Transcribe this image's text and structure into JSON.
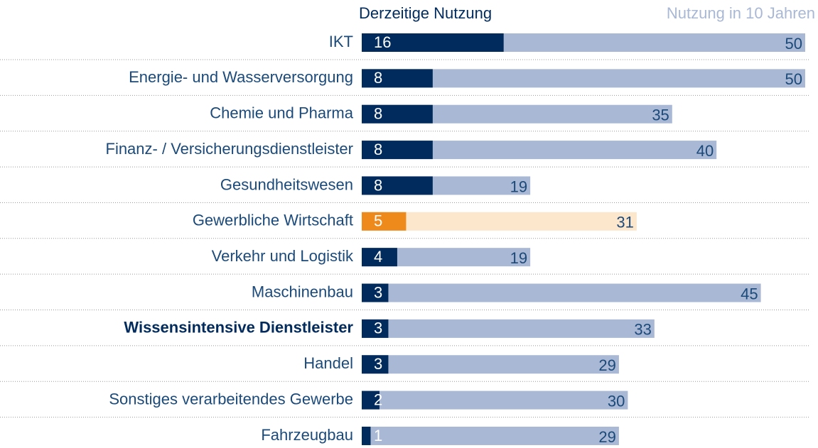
{
  "chart_data": {
    "type": "overlap-bar",
    "categories": [
      "IKT",
      "Energie- und Wasserversorgung",
      "Chemie und Pharma",
      "Finanz- / Versicherungsdienstleister",
      "Gesundheitswesen",
      "Gewerbliche Wirtschaft",
      "Verkehr und Logistik",
      "Maschinenbau",
      "Wissensintensive Dienstleister",
      "Handel",
      "Sonstiges verarbeitendes Gewerbe",
      "Fahrzeugbau"
    ],
    "series": [
      {
        "name": "Nutzung in 10 Jahren",
        "color": "#a9b8d4",
        "values": [
          50,
          50,
          35,
          40,
          19,
          31,
          19,
          45,
          33,
          29,
          30,
          29
        ],
        "colors": [
          "#a9b8d4",
          "#a9b8d4",
          "#a9b8d4",
          "#a9b8d4",
          "#a9b8d4",
          "#fce6cc",
          "#a9b8d4",
          "#a9b8d4",
          "#a9b8d4",
          "#a9b8d4",
          "#a9b8d4",
          "#a9b8d4"
        ]
      },
      {
        "name": "Derzeitige Nutzung",
        "color": "#002b5c",
        "values": [
          16,
          8,
          8,
          8,
          8,
          5,
          4,
          3,
          3,
          3,
          2,
          1
        ],
        "colors": [
          "#002b5c",
          "#002b5c",
          "#002b5c",
          "#002b5c",
          "#002b5c",
          "#ee8a1b",
          "#002b5c",
          "#002b5c",
          "#002b5c",
          "#002b5c",
          "#002b5c",
          "#002b5c"
        ]
      }
    ],
    "xlim": [
      0,
      50
    ],
    "bold_category_index": 8
  }
}
